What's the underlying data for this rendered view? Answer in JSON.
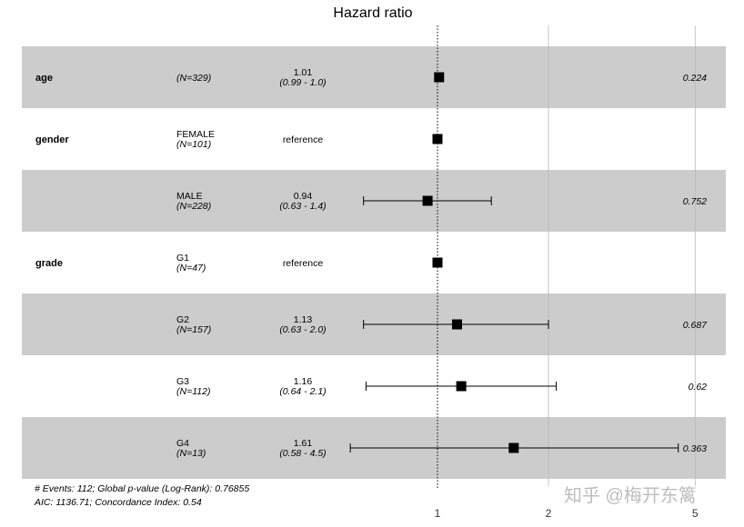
{
  "chart_data": {
    "type": "forest",
    "title": "Hazard ratio",
    "x_scale": "log",
    "x_ticks": [
      "1",
      "2",
      "5"
    ],
    "xlim": [
      0.3,
      6
    ],
    "reference_line": 1,
    "rows": [
      {
        "variable": "age",
        "level": "",
        "n": "(N=329)",
        "hr_text": "1.01",
        "ci_text": "(0.99 - 1.0)",
        "p": "0.224",
        "hr": 1.01,
        "lo": 0.99,
        "hi": 1.03,
        "reference": false,
        "shaded": true
      },
      {
        "variable": "gender",
        "level": "FEMALE",
        "n": "(N=101)",
        "hr_text": "",
        "ci_text": "",
        "ref_text": "reference",
        "p": "",
        "hr": 1.0,
        "lo": 1.0,
        "hi": 1.0,
        "reference": true,
        "shaded": false
      },
      {
        "variable": "",
        "level": "MALE",
        "n": "(N=228)",
        "hr_text": "0.94",
        "ci_text": "(0.63 - 1.4)",
        "p": "0.752",
        "hr": 0.94,
        "lo": 0.63,
        "hi": 1.4,
        "reference": false,
        "shaded": true
      },
      {
        "variable": "grade",
        "level": "G1",
        "n": "(N=47)",
        "hr_text": "",
        "ci_text": "",
        "ref_text": "reference",
        "p": "",
        "hr": 1.0,
        "lo": 1.0,
        "hi": 1.0,
        "reference": true,
        "shaded": false
      },
      {
        "variable": "",
        "level": "G2",
        "n": "(N=157)",
        "hr_text": "1.13",
        "ci_text": "(0.63 - 2.0)",
        "p": "0.687",
        "hr": 1.13,
        "lo": 0.63,
        "hi": 2.0,
        "reference": false,
        "shaded": true
      },
      {
        "variable": "",
        "level": "G3",
        "n": "(N=112)",
        "hr_text": "1.16",
        "ci_text": "(0.64 - 2.1)",
        "p": "0.62",
        "hr": 1.16,
        "lo": 0.64,
        "hi": 2.1,
        "reference": false,
        "shaded": false
      },
      {
        "variable": "",
        "level": "G4",
        "n": "(N=13)",
        "hr_text": "1.61",
        "ci_text": "(0.58 - 4.5)",
        "p": "0.363",
        "hr": 1.61,
        "lo": 0.58,
        "hi": 4.5,
        "reference": false,
        "shaded": true
      }
    ],
    "footnote": [
      "# Events: 112; Global p-value (Log-Rank): 0.76855",
      "AIC: 1136.71; Concordance Index: 0.54"
    ],
    "colors": {
      "band": "#cccccc",
      "marker": "#000000",
      "grid": "#d9d9d9"
    }
  },
  "watermark": "知乎 @梅开东篱"
}
